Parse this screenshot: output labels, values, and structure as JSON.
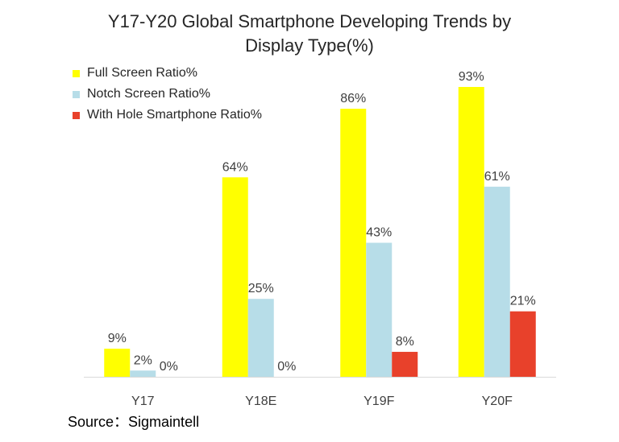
{
  "chart_data": {
    "type": "bar",
    "title_lines": [
      "Y17-Y20 Global Smartphone Developing Trends by",
      "Display Type(%)"
    ],
    "categories": [
      "Y17",
      "Y18E",
      "Y19F",
      "Y20F"
    ],
    "series": [
      {
        "name": "Full Screen Ratio%",
        "color": "#ffff00",
        "values": [
          9,
          64,
          86,
          93
        ],
        "labels": [
          "9%",
          "64%",
          "86%",
          "93%"
        ]
      },
      {
        "name": "Notch Screen Ratio%",
        "color": "#b7dde8",
        "values": [
          2,
          25,
          43,
          61
        ],
        "labels": [
          "2%",
          "25%",
          "43%",
          "61%"
        ]
      },
      {
        "name": "With Hole Smartphone Ratio%",
        "color": "#e8412b",
        "values": [
          0,
          0,
          8,
          21
        ],
        "labels": [
          "0%",
          "0%",
          "8%",
          "21%"
        ]
      }
    ],
    "xlabel": "",
    "ylabel": "",
    "ylim": [
      0,
      93
    ],
    "grid": false,
    "legend_position": "top-left"
  },
  "footer": {
    "source": "Source：Sigmaintell"
  }
}
